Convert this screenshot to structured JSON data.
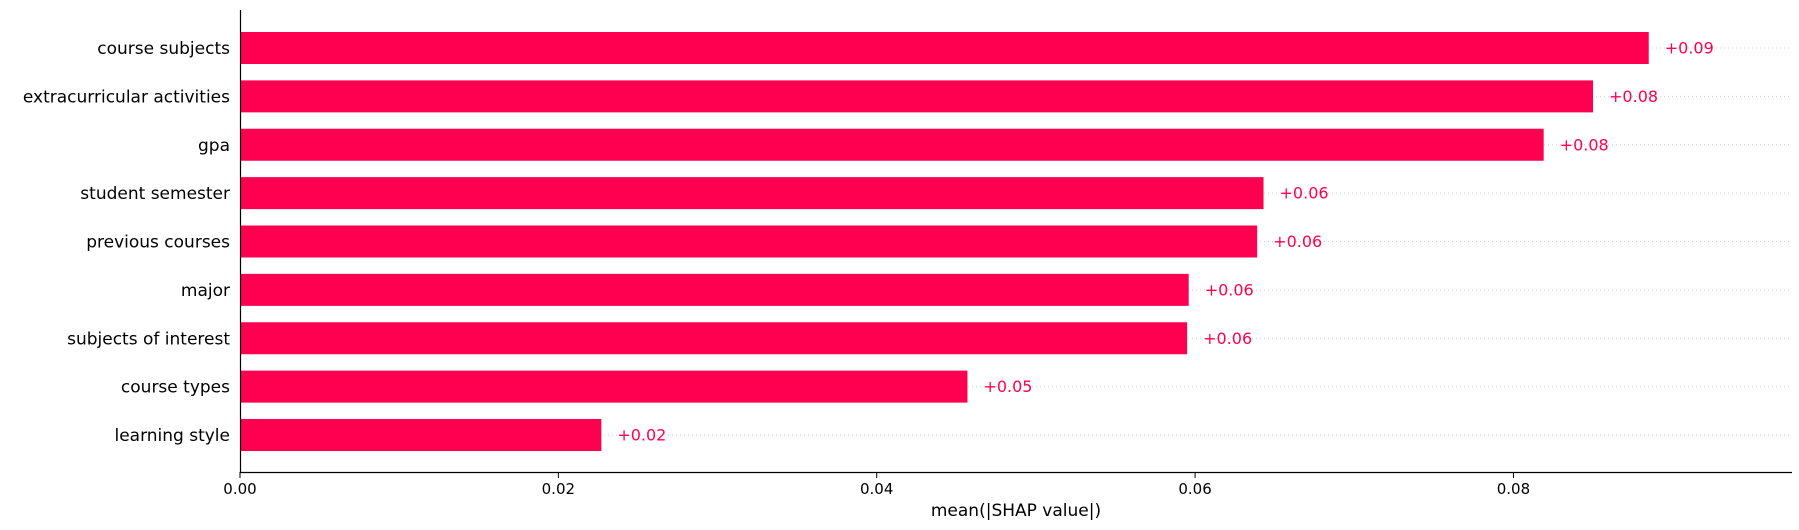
{
  "chart_data": {
    "type": "bar",
    "orientation": "horizontal",
    "categories": [
      "course subjects",
      "extracurricular activities",
      "gpa",
      "student semester",
      "previous courses",
      "major",
      "subjects of interest",
      "course types",
      "learning style"
    ],
    "values": [
      0.0885,
      0.085,
      0.0819,
      0.0643,
      0.0639,
      0.0596,
      0.0595,
      0.0457,
      0.0227
    ],
    "data_labels": [
      "+0.09",
      "+0.08",
      "+0.08",
      "+0.06",
      "+0.06",
      "+0.06",
      "+0.06",
      "+0.05",
      "+0.02"
    ],
    "xlabel": "mean(|SHAP value|)",
    "ylabel": "",
    "title": "",
    "xlim": [
      0,
      0.0975
    ],
    "xticks": [
      0.0,
      0.02,
      0.04,
      0.06,
      0.08
    ],
    "xtick_labels": [
      "0.00",
      "0.02",
      "0.04",
      "0.06",
      "0.08"
    ],
    "grid": "horizontal dotted guide lines",
    "legend": "none",
    "bar_color": "#ff0051",
    "label_color": "#ff0051"
  }
}
